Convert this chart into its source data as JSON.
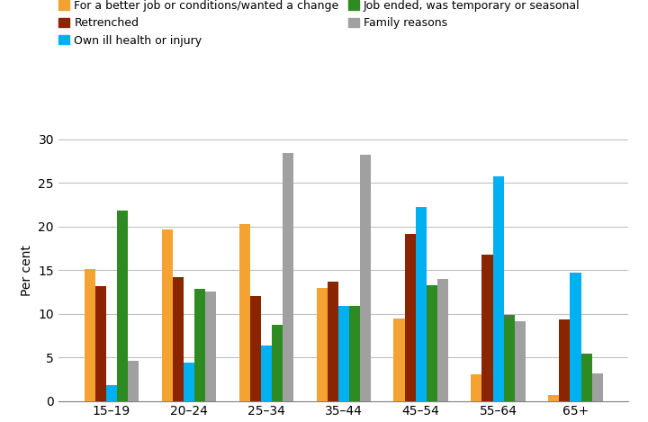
{
  "categories": [
    "15–19",
    "20–24",
    "25–34",
    "35–44",
    "45–54",
    "55–64",
    "65+"
  ],
  "series_order": [
    "For a better job or conditions/wanted a change",
    "Retrenched",
    "Own ill health or injury",
    "Job ended, was temporary or seasonal",
    "Family reasons"
  ],
  "series": {
    "For a better job or conditions/wanted a change": [
      15.1,
      19.7,
      20.3,
      13.0,
      9.4,
      3.1,
      0.7
    ],
    "Retrenched": [
      13.2,
      14.2,
      12.0,
      13.7,
      19.1,
      16.8,
      9.3
    ],
    "Own ill health or injury": [
      1.8,
      4.4,
      6.4,
      10.9,
      22.2,
      25.7,
      14.7
    ],
    "Job ended, was temporary or seasonal": [
      21.8,
      12.9,
      8.7,
      10.9,
      13.3,
      9.9,
      5.4
    ],
    "Family reasons": [
      4.6,
      12.5,
      28.4,
      28.2,
      14.0,
      9.1,
      3.2
    ]
  },
  "colors": {
    "For a better job or conditions/wanted a change": "#F4A332",
    "Retrenched": "#8B2500",
    "Own ill health or injury": "#00B0F0",
    "Job ended, was temporary or seasonal": "#2E8B22",
    "Family reasons": "#A0A0A0"
  },
  "legend_order": [
    "For a better job or conditions/wanted a change",
    "Retrenched",
    "Own ill health or injury",
    "Job ended, was temporary or seasonal",
    "Family reasons"
  ],
  "ylabel": "Per cent",
  "ylim": [
    0,
    30
  ],
  "yticks": [
    0,
    5,
    10,
    15,
    20,
    25,
    30
  ],
  "bar_width": 0.14,
  "figsize": [
    7.2,
    4.69
  ],
  "dpi": 100
}
